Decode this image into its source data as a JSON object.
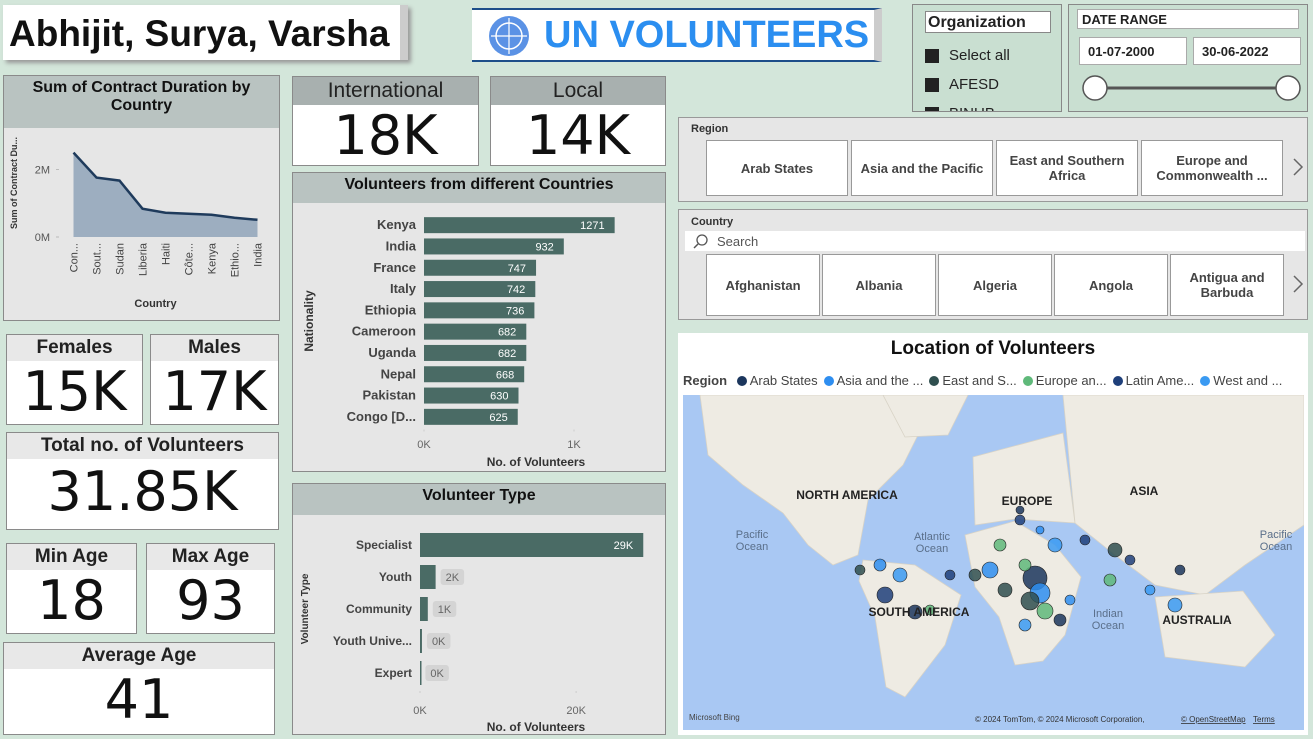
{
  "header": {
    "authors": "Abhijit, Surya, Varsha",
    "title": "UN VOLUNTEERS"
  },
  "organization": {
    "title": "Organization",
    "items": [
      "Select all",
      "AFESD",
      "BINUB"
    ]
  },
  "date_range": {
    "title": "DATE RANGE",
    "start": "01-07-2000",
    "end": "30-06-2022"
  },
  "cards": [
    {
      "label": "International",
      "value": "18K"
    },
    {
      "label": "Local",
      "value": "14K"
    },
    {
      "label": "Females",
      "value": "15K"
    },
    {
      "label": "Males",
      "value": "17K"
    },
    {
      "label": "Total no. of Volunteers",
      "value": "31.85K"
    },
    {
      "label": "Min Age",
      "value": "18"
    },
    {
      "label": "Max Age",
      "value": "93"
    },
    {
      "label": "Average Age",
      "value": "41"
    }
  ],
  "region_slicer": {
    "title": "Region",
    "items": [
      "Arab States",
      "Asia and the Pacific",
      "East and Southern Africa",
      "Europe and Commonwealth ..."
    ]
  },
  "country_slicer": {
    "title": "Country",
    "search": "Search",
    "items": [
      "Afghanistan",
      "Albania",
      "Algeria",
      "Angola",
      "Antigua and Barbuda"
    ]
  },
  "map": {
    "title": "Location of Volunteers",
    "legend_title": "Region",
    "legend": [
      {
        "name": "Arab States",
        "color": "#1b365d"
      },
      {
        "name": "Asia and the ...",
        "color": "#2e8ef0"
      },
      {
        "name": "East and S...",
        "color": "#2f4f4f"
      },
      {
        "name": "Europe an...",
        "color": "#5fb97a"
      },
      {
        "name": "Latin Ame...",
        "color": "#1e3f7a"
      },
      {
        "name": "West and ...",
        "color": "#3a9af2"
      }
    ],
    "labels": [
      [
        "NORTH AMERICA"
      ],
      [
        "EUROPE"
      ],
      [
        "ASIA"
      ],
      [
        "SOUTH AMERICA"
      ],
      [
        "AUSTRALIA"
      ],
      [
        "Pacific",
        "Ocean"
      ],
      [
        "Pacific",
        "Ocean"
      ],
      [
        "Atlantic",
        "Ocean"
      ],
      [
        "Indian",
        "Ocean"
      ]
    ],
    "provider": "Microsoft Bing",
    "attribution": "© 2024 TomTom, © 2024 Microsoft Corporation,",
    "osm": "© OpenStreetMap",
    "terms": "Terms"
  },
  "chart_data": [
    {
      "type": "area",
      "title": "Sum of Contract Duration by Country",
      "x_label": "Country",
      "y_label": "Sum of Contract Du...",
      "categories": [
        "Con...",
        "Sout...",
        "Sudan",
        "Liberia",
        "Haiti",
        "Côte...",
        "Kenya",
        "Ethio...",
        "India"
      ],
      "values": [
        2500000,
        1760000,
        1670000,
        840000,
        720000,
        690000,
        660000,
        570000,
        510000
      ],
      "color": "#1f3b5c",
      "fill": "#8fa3b8",
      "ylim": [
        0,
        3200000
      ],
      "yticks": [
        {
          "value": 0,
          "label": "0M"
        },
        {
          "value": 2000000,
          "label": "2M"
        }
      ]
    },
    {
      "type": "bar",
      "orientation": "horizontal",
      "title": "Volunteers from different Countries",
      "x_label": "No. of Volunteers",
      "y_label": "Nationality",
      "categories": [
        "Kenya",
        "India",
        "France",
        "Italy",
        "Ethiopia",
        "Cameroon",
        "Uganda",
        "Nepal",
        "Pakistan",
        "Congo [D..."
      ],
      "values": [
        1271,
        932,
        747,
        742,
        736,
        682,
        682,
        668,
        630,
        625
      ],
      "color": "#4a6b65",
      "xlim": [
        0,
        1500
      ],
      "xticks": [
        {
          "value": 0,
          "label": "0K"
        },
        {
          "value": 1000,
          "label": "1K"
        }
      ]
    },
    {
      "type": "bar",
      "orientation": "horizontal",
      "title": "Volunteer Type",
      "x_label": "No. of Volunteers",
      "y_label": "Volunteer Type",
      "categories": [
        "Specialist",
        "Youth",
        "Community",
        "Youth Unive...",
        "Expert"
      ],
      "values": [
        28600,
        2000,
        1000,
        250,
        50
      ],
      "value_labels": [
        "29K",
        "2K",
        "1K",
        "0K",
        "0K"
      ],
      "color": "#4a6b65",
      "xlim": [
        0,
        31000
      ],
      "xticks": [
        {
          "value": 0,
          "label": "0K"
        },
        {
          "value": 20000,
          "label": "20K"
        }
      ]
    }
  ]
}
